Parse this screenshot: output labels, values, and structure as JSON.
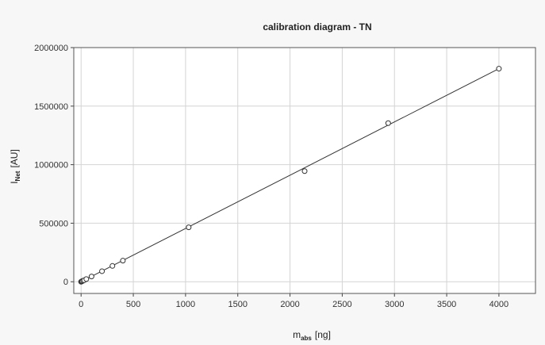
{
  "chart_data": {
    "type": "scatter",
    "title": "calibration diagram - TN",
    "xlabel": {
      "main": "m",
      "sub": "abs",
      "unit": "[ng]"
    },
    "ylabel": {
      "main": "I",
      "sub": "Net",
      "unit": "[AU]"
    },
    "xlim": [
      -70,
      4350
    ],
    "ylim": [
      -100000,
      2000000
    ],
    "xticks": [
      0,
      500,
      1000,
      1500,
      2000,
      2500,
      3000,
      3500,
      4000
    ],
    "yticks": [
      0,
      500000,
      1000000,
      1500000,
      2000000
    ],
    "grid": true,
    "series": [
      {
        "marker": "circle",
        "x": [
          0,
          5,
          10,
          20,
          30,
          50,
          100,
          200,
          300,
          400,
          1030,
          2140,
          2940,
          4000
        ],
        "y": [
          0,
          2000,
          5000,
          9000,
          13000,
          23000,
          45000,
          90000,
          135000,
          180000,
          465000,
          945000,
          1355000,
          1820000
        ]
      }
    ],
    "fit_line": {
      "x": [
        0,
        4000
      ],
      "y": [
        0,
        1820000
      ]
    }
  }
}
